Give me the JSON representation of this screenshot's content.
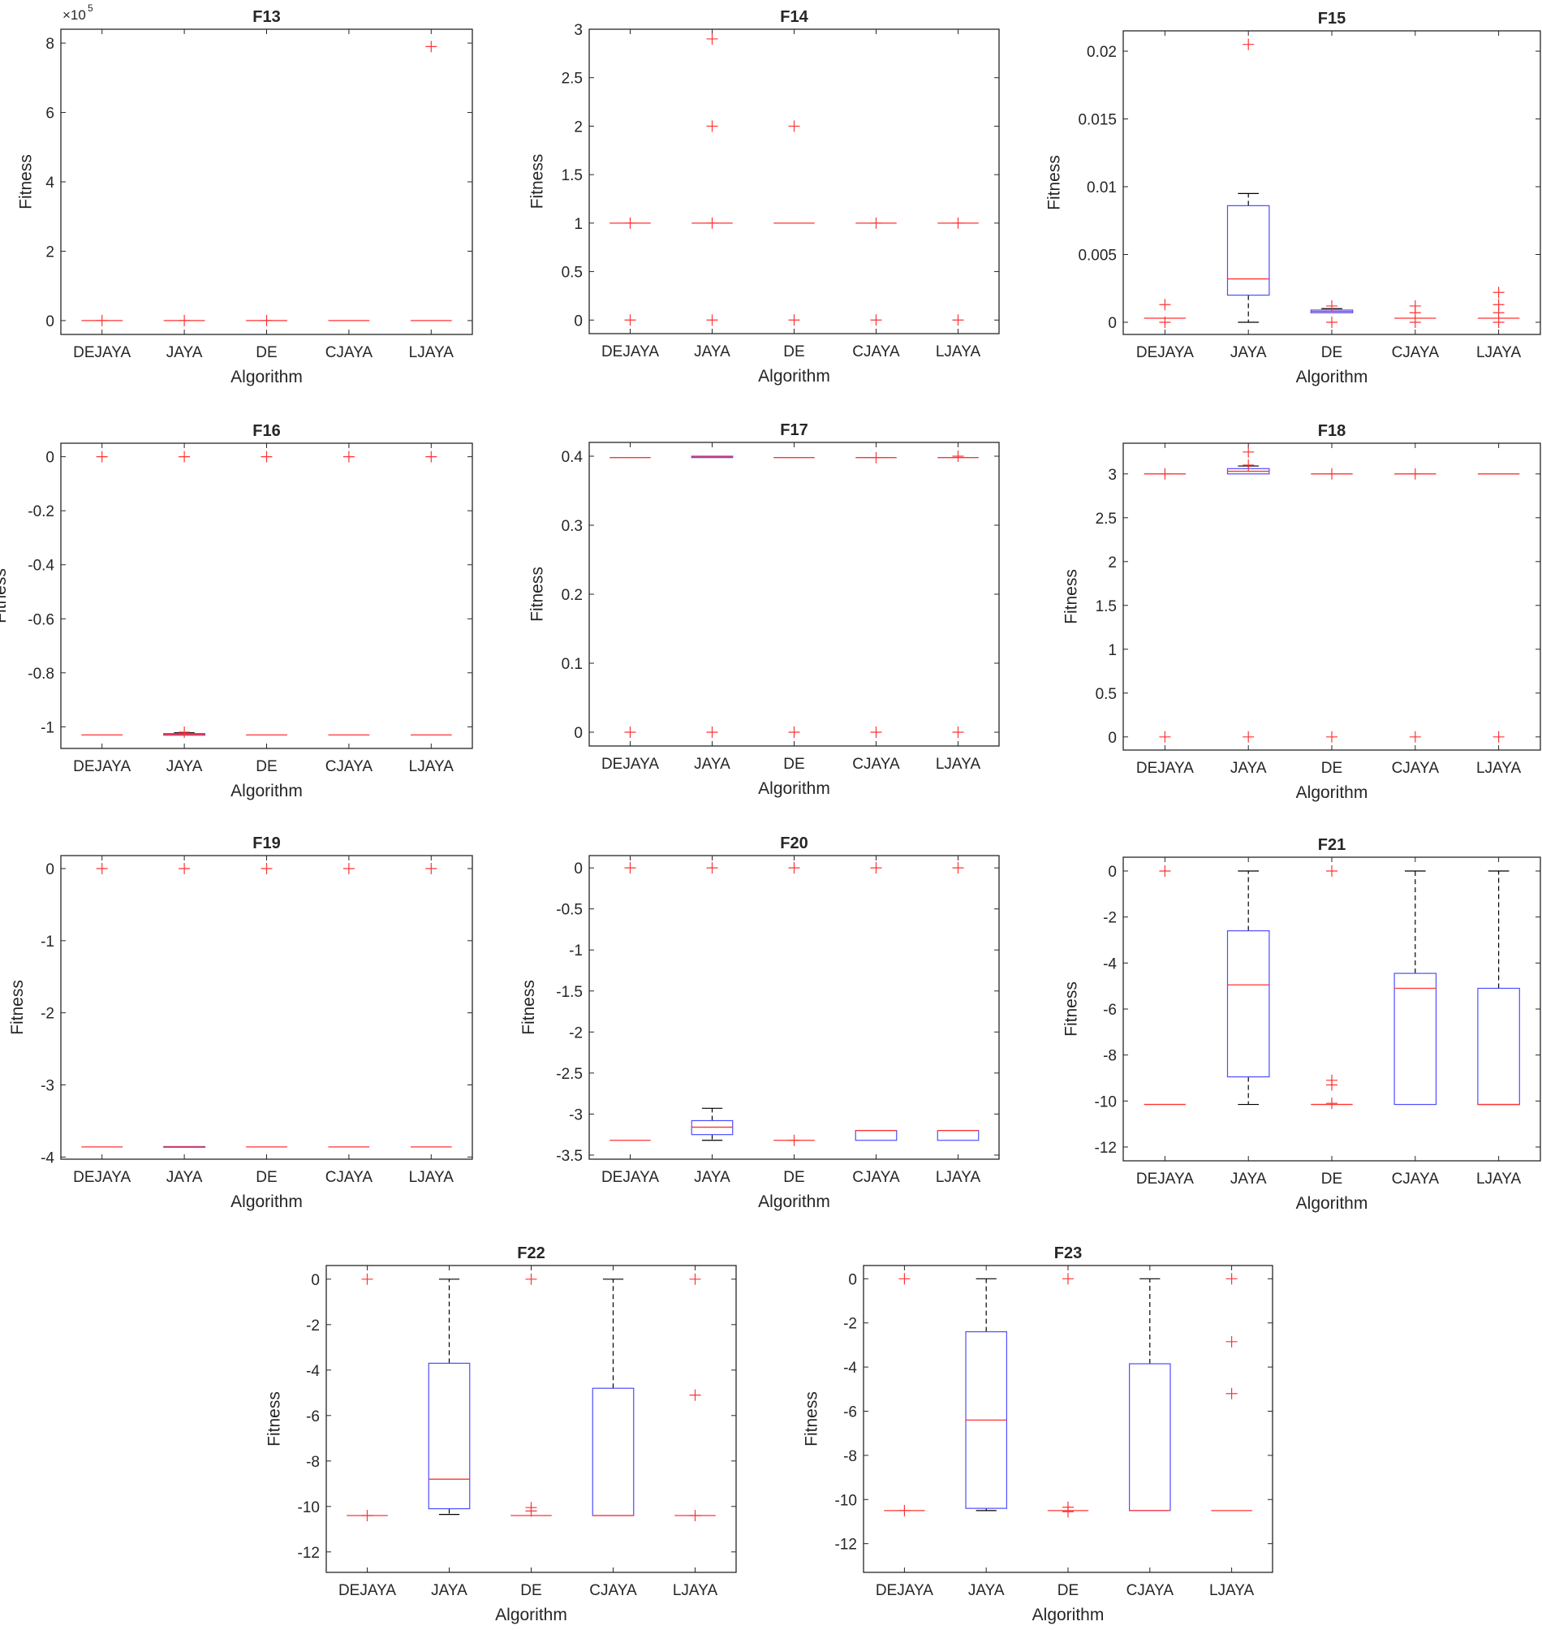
{
  "figure": {
    "ylabel": "Fitness",
    "xlabel": "Algorithm"
  },
  "colors": {
    "box": "#4d4dff",
    "median": "#ff3333",
    "outlier": "#ff3333",
    "whisker": "#000000",
    "axis": "#262626"
  },
  "chart_data": [
    {
      "type": "box",
      "title": "F13",
      "xlabel": "Algorithm",
      "ylabel": "Fitness",
      "ylim": [
        -0.4,
        8.4
      ],
      "yticks": [
        0,
        2,
        4,
        6,
        8
      ],
      "ytick_labels": [
        "0",
        "2",
        "4",
        "6",
        "8"
      ],
      "exponent": "5",
      "categories": [
        "DEJAYA",
        "JAYA",
        "DE",
        "CJAYA",
        "LJAYA"
      ],
      "boxes": [
        {
          "median": 0,
          "q1": 0,
          "q3": 0,
          "whisker_low": 0,
          "whisker_high": 0,
          "outliers": [
            0
          ]
        },
        {
          "median": 0,
          "q1": 0,
          "q3": 0,
          "whisker_low": 0,
          "whisker_high": 0,
          "outliers": [
            0
          ]
        },
        {
          "median": 0,
          "q1": 0,
          "q3": 0,
          "whisker_low": 0,
          "whisker_high": 0,
          "outliers": [
            0
          ]
        },
        {
          "median": 0,
          "q1": 0,
          "q3": 0,
          "whisker_low": 0,
          "whisker_high": 0,
          "outliers": []
        },
        {
          "median": 0,
          "q1": 0,
          "q3": 0,
          "whisker_low": 0,
          "whisker_high": 0,
          "outliers": [
            7.9
          ]
        }
      ]
    },
    {
      "type": "box",
      "title": "F14",
      "xlabel": "Algorithm",
      "ylabel": "Fitness",
      "ylim": [
        -0.14,
        3.0
      ],
      "yticks": [
        0,
        0.5,
        1,
        1.5,
        2,
        2.5,
        3
      ],
      "ytick_labels": [
        "0",
        "0.5",
        "1",
        "1.5",
        "2",
        "2.5",
        "3"
      ],
      "categories": [
        "DEJAYA",
        "JAYA",
        "DE",
        "CJAYA",
        "LJAYA"
      ],
      "boxes": [
        {
          "median": 1,
          "q1": 1,
          "q3": 1,
          "whisker_low": 1,
          "whisker_high": 1,
          "outliers": [
            0,
            1
          ]
        },
        {
          "median": 1,
          "q1": 1,
          "q3": 1,
          "whisker_low": 1,
          "whisker_high": 1,
          "outliers": [
            0,
            1,
            2,
            2.9
          ]
        },
        {
          "median": 1,
          "q1": 1,
          "q3": 1,
          "whisker_low": 1,
          "whisker_high": 1,
          "outliers": [
            0,
            2
          ]
        },
        {
          "median": 1,
          "q1": 1,
          "q3": 1,
          "whisker_low": 1,
          "whisker_high": 1,
          "outliers": [
            0,
            1
          ]
        },
        {
          "median": 1,
          "q1": 1,
          "q3": 1,
          "whisker_low": 1,
          "whisker_high": 1,
          "outliers": [
            0,
            1
          ]
        }
      ]
    },
    {
      "type": "box",
      "title": "F15",
      "xlabel": "Algorithm",
      "ylabel": "Fitness",
      "ylim": [
        -0.0009,
        0.0215
      ],
      "yticks": [
        0,
        0.005,
        0.01,
        0.015,
        0.02
      ],
      "ytick_labels": [
        "0",
        "0.005",
        "0.01",
        "0.015",
        "0.02"
      ],
      "categories": [
        "DEJAYA",
        "JAYA",
        "DE",
        "CJAYA",
        "LJAYA"
      ],
      "boxes": [
        {
          "median": 0.0003,
          "q1": 0.0003,
          "q3": 0.0003,
          "whisker_low": 0.0003,
          "whisker_high": 0.0003,
          "outliers": [
            0,
            0.0013
          ]
        },
        {
          "median": 0.0032,
          "q1": 0.002,
          "q3": 0.0086,
          "whisker_low": 0,
          "whisker_high": 0.0095,
          "outliers": [
            0.0205
          ]
        },
        {
          "median": 0.0008,
          "q1": 0.0007,
          "q3": 0.0009,
          "whisker_low": 0.0007,
          "whisker_high": 0.001,
          "outliers": [
            0,
            0.0012
          ]
        },
        {
          "median": 0.0003,
          "q1": 0.0003,
          "q3": 0.0003,
          "whisker_low": 0.0003,
          "whisker_high": 0.0003,
          "outliers": [
            0,
            0.0007,
            0.0012
          ]
        },
        {
          "median": 0.0003,
          "q1": 0.0003,
          "q3": 0.0003,
          "whisker_low": 0.0003,
          "whisker_high": 0.0003,
          "outliers": [
            0,
            0.0007,
            0.0013,
            0.0022
          ]
        }
      ]
    },
    {
      "type": "box",
      "title": "F16",
      "xlabel": "Algorithm",
      "ylabel": "Fitness",
      "ylim": [
        -1.08,
        0.05
      ],
      "yticks": [
        -1,
        -0.8,
        -0.6,
        -0.4,
        -0.2,
        0
      ],
      "ytick_labels": [
        "-1",
        "-0.8",
        "-0.6",
        "-0.4",
        "-0.2",
        "0"
      ],
      "categories": [
        "DEJAYA",
        "JAYA",
        "DE",
        "CJAYA",
        "LJAYA"
      ],
      "boxes": [
        {
          "median": -1.03,
          "q1": -1.03,
          "q3": -1.03,
          "whisker_low": -1.03,
          "whisker_high": -1.03,
          "outliers": [
            0
          ]
        },
        {
          "median": -1.028,
          "q1": -1.031,
          "q3": -1.025,
          "whisker_low": -1.031,
          "whisker_high": -1.022,
          "outliers": [
            0,
            -1.02
          ]
        },
        {
          "median": -1.03,
          "q1": -1.03,
          "q3": -1.03,
          "whisker_low": -1.03,
          "whisker_high": -1.03,
          "outliers": [
            0
          ]
        },
        {
          "median": -1.03,
          "q1": -1.03,
          "q3": -1.03,
          "whisker_low": -1.03,
          "whisker_high": -1.03,
          "outliers": [
            0
          ]
        },
        {
          "median": -1.03,
          "q1": -1.03,
          "q3": -1.03,
          "whisker_low": -1.03,
          "whisker_high": -1.03,
          "outliers": [
            0
          ]
        }
      ]
    },
    {
      "type": "box",
      "title": "F17",
      "xlabel": "Algorithm",
      "ylabel": "Fitness",
      "ylim": [
        -0.02,
        0.42
      ],
      "yticks": [
        0,
        0.1,
        0.2,
        0.3,
        0.4
      ],
      "ytick_labels": [
        "0",
        "0.1",
        "0.2",
        "0.3",
        "0.4"
      ],
      "categories": [
        "DEJAYA",
        "JAYA",
        "DE",
        "CJAYA",
        "LJAYA"
      ],
      "boxes": [
        {
          "median": 0.398,
          "q1": 0.398,
          "q3": 0.398,
          "whisker_low": 0.398,
          "whisker_high": 0.398,
          "outliers": [
            0
          ]
        },
        {
          "median": 0.399,
          "q1": 0.398,
          "q3": 0.4,
          "whisker_low": 0.398,
          "whisker_high": 0.4,
          "outliers": [
            0
          ]
        },
        {
          "median": 0.398,
          "q1": 0.398,
          "q3": 0.398,
          "whisker_low": 0.398,
          "whisker_high": 0.398,
          "outliers": [
            0
          ]
        },
        {
          "median": 0.398,
          "q1": 0.398,
          "q3": 0.398,
          "whisker_low": 0.398,
          "whisker_high": 0.398,
          "outliers": [
            0,
            0.398
          ]
        },
        {
          "median": 0.398,
          "q1": 0.398,
          "q3": 0.398,
          "whisker_low": 0.398,
          "whisker_high": 0.398,
          "outliers": [
            0,
            0.4
          ]
        }
      ]
    },
    {
      "type": "box",
      "title": "F18",
      "xlabel": "Algorithm",
      "ylabel": "Fitness",
      "ylim": [
        -0.15,
        3.35
      ],
      "yticks": [
        0,
        0.5,
        1,
        1.5,
        2,
        2.5,
        3
      ],
      "ytick_labels": [
        "0",
        "0.5",
        "1",
        "1.5",
        "2",
        "2.5",
        "3"
      ],
      "categories": [
        "DEJAYA",
        "JAYA",
        "DE",
        "CJAYA",
        "LJAYA"
      ],
      "boxes": [
        {
          "median": 3,
          "q1": 3,
          "q3": 3,
          "whisker_low": 3,
          "whisker_high": 3,
          "outliers": [
            0,
            3
          ]
        },
        {
          "median": 3.03,
          "q1": 3.0,
          "q3": 3.06,
          "whisker_low": 3.0,
          "whisker_high": 3.09,
          "outliers": [
            0,
            3.1,
            3.25
          ]
        },
        {
          "median": 3,
          "q1": 3,
          "q3": 3,
          "whisker_low": 3,
          "whisker_high": 3,
          "outliers": [
            0,
            3
          ]
        },
        {
          "median": 3,
          "q1": 3,
          "q3": 3,
          "whisker_low": 3,
          "whisker_high": 3,
          "outliers": [
            0,
            3
          ]
        },
        {
          "median": 3,
          "q1": 3,
          "q3": 3,
          "whisker_low": 3,
          "whisker_high": 3,
          "outliers": [
            0
          ]
        }
      ]
    },
    {
      "type": "box",
      "title": "F19",
      "xlabel": "Algorithm",
      "ylabel": "Fitness",
      "ylim": [
        -4.03,
        0.18
      ],
      "yticks": [
        -4,
        -3,
        -2,
        -1,
        0
      ],
      "ytick_labels": [
        "-4",
        "-3",
        "-2",
        "-1",
        "0"
      ],
      "categories": [
        "DEJAYA",
        "JAYA",
        "DE",
        "CJAYA",
        "LJAYA"
      ],
      "boxes": [
        {
          "median": -3.86,
          "q1": -3.86,
          "q3": -3.86,
          "whisker_low": -3.86,
          "whisker_high": -3.86,
          "outliers": [
            0
          ]
        },
        {
          "median": -3.86,
          "q1": -3.865,
          "q3": -3.855,
          "whisker_low": -3.865,
          "whisker_high": -3.855,
          "outliers": [
            0
          ]
        },
        {
          "median": -3.86,
          "q1": -3.86,
          "q3": -3.86,
          "whisker_low": -3.86,
          "whisker_high": -3.86,
          "outliers": [
            0
          ]
        },
        {
          "median": -3.86,
          "q1": -3.86,
          "q3": -3.86,
          "whisker_low": -3.86,
          "whisker_high": -3.86,
          "outliers": [
            0
          ]
        },
        {
          "median": -3.86,
          "q1": -3.86,
          "q3": -3.86,
          "whisker_low": -3.86,
          "whisker_high": -3.86,
          "outliers": [
            0
          ]
        }
      ]
    },
    {
      "type": "box",
      "title": "F20",
      "xlabel": "Algorithm",
      "ylabel": "Fitness",
      "ylim": [
        -3.55,
        0.15
      ],
      "yticks": [
        -3.5,
        -3,
        -2.5,
        -2,
        -1.5,
        -1,
        -0.5,
        0
      ],
      "ytick_labels": [
        "-3.5",
        "-3",
        "-2.5",
        "-2",
        "-1.5",
        "-1",
        "-0.5",
        "0"
      ],
      "categories": [
        "DEJAYA",
        "JAYA",
        "DE",
        "CJAYA",
        "LJAYA"
      ],
      "boxes": [
        {
          "median": -3.32,
          "q1": -3.32,
          "q3": -3.32,
          "whisker_low": -3.32,
          "whisker_high": -3.32,
          "outliers": [
            0
          ]
        },
        {
          "median": -3.16,
          "q1": -3.25,
          "q3": -3.08,
          "whisker_low": -3.32,
          "whisker_high": -2.93,
          "outliers": [
            0
          ]
        },
        {
          "median": -3.32,
          "q1": -3.32,
          "q3": -3.32,
          "whisker_low": -3.32,
          "whisker_high": -3.32,
          "outliers": [
            0,
            -3.32
          ]
        },
        {
          "median": -3.2,
          "q1": -3.32,
          "q3": -3.2,
          "whisker_low": -3.32,
          "whisker_high": -3.2,
          "outliers": [
            0
          ]
        },
        {
          "median": -3.2,
          "q1": -3.32,
          "q3": -3.2,
          "whisker_low": -3.32,
          "whisker_high": -3.2,
          "outliers": [
            0
          ]
        }
      ]
    },
    {
      "type": "box",
      "title": "F21",
      "xlabel": "Algorithm",
      "ylabel": "Fitness",
      "ylim": [
        -12.6,
        0.6
      ],
      "yticks": [
        -12,
        -10,
        -8,
        -6,
        -4,
        -2,
        0
      ],
      "ytick_labels": [
        "-12",
        "-10",
        "-8",
        "-6",
        "-4",
        "-2",
        "0"
      ],
      "categories": [
        "DEJAYA",
        "JAYA",
        "DE",
        "CJAYA",
        "LJAYA"
      ],
      "boxes": [
        {
          "median": -10.15,
          "q1": -10.15,
          "q3": -10.15,
          "whisker_low": -10.15,
          "whisker_high": -10.15,
          "outliers": [
            0
          ]
        },
        {
          "median": -4.95,
          "q1": -8.95,
          "q3": -2.6,
          "whisker_low": -10.15,
          "whisker_high": 0,
          "outliers": []
        },
        {
          "median": -10.15,
          "q1": -10.15,
          "q3": -10.15,
          "whisker_low": -10.15,
          "whisker_high": -10.15,
          "outliers": [
            0,
            -9.1,
            -9.3,
            -10.1
          ]
        },
        {
          "median": -5.1,
          "q1": -10.15,
          "q3": -4.45,
          "whisker_low": -10.15,
          "whisker_high": 0,
          "outliers": []
        },
        {
          "median": -10.15,
          "q1": -10.15,
          "q3": -5.1,
          "whisker_low": -10.15,
          "whisker_high": 0,
          "outliers": []
        }
      ]
    },
    {
      "type": "box",
      "title": "F22",
      "xlabel": "Algorithm",
      "ylabel": "Fitness",
      "ylim": [
        -12.9,
        0.6
      ],
      "yticks": [
        -12,
        -10,
        -8,
        -6,
        -4,
        -2,
        0
      ],
      "ytick_labels": [
        "-12",
        "-10",
        "-8",
        "-6",
        "-4",
        "-2",
        "0"
      ],
      "categories": [
        "DEJAYA",
        "JAYA",
        "DE",
        "CJAYA",
        "LJAYA"
      ],
      "boxes": [
        {
          "median": -10.4,
          "q1": -10.4,
          "q3": -10.4,
          "whisker_low": -10.4,
          "whisker_high": -10.4,
          "outliers": [
            0,
            -10.4
          ]
        },
        {
          "median": -8.8,
          "q1": -10.1,
          "q3": -3.7,
          "whisker_low": -10.35,
          "whisker_high": 0,
          "outliers": []
        },
        {
          "median": -10.4,
          "q1": -10.4,
          "q3": -10.4,
          "whisker_low": -10.4,
          "whisker_high": -10.4,
          "outliers": [
            0,
            -10.05,
            -10.2
          ]
        },
        {
          "median": -10.4,
          "q1": -10.4,
          "q3": -4.8,
          "whisker_low": -10.4,
          "whisker_high": 0,
          "outliers": []
        },
        {
          "median": -10.4,
          "q1": -10.4,
          "q3": -10.4,
          "whisker_low": -10.4,
          "whisker_high": -10.4,
          "outliers": [
            0,
            -5.1,
            -10.4
          ]
        }
      ]
    },
    {
      "type": "box",
      "title": "F23",
      "xlabel": "Algorithm",
      "ylabel": "Fitness",
      "ylim": [
        -13.3,
        0.6
      ],
      "yticks": [
        -12,
        -10,
        -8,
        -6,
        -4,
        -2,
        0
      ],
      "ytick_labels": [
        "-12",
        "-10",
        "-8",
        "-6",
        "-4",
        "-2",
        "0"
      ],
      "categories": [
        "DEJAYA",
        "JAYA",
        "DE",
        "CJAYA",
        "LJAYA"
      ],
      "boxes": [
        {
          "median": -10.5,
          "q1": -10.5,
          "q3": -10.5,
          "whisker_low": -10.5,
          "whisker_high": -10.5,
          "outliers": [
            0,
            -10.5
          ]
        },
        {
          "median": -6.4,
          "q1": -10.4,
          "q3": -2.4,
          "whisker_low": -10.5,
          "whisker_high": 0,
          "outliers": []
        },
        {
          "median": -10.5,
          "q1": -10.5,
          "q3": -10.5,
          "whisker_low": -10.5,
          "whisker_high": -10.5,
          "outliers": [
            0,
            -10.35,
            -10.55
          ]
        },
        {
          "median": -10.5,
          "q1": -10.5,
          "q3": -3.85,
          "whisker_low": -10.5,
          "whisker_high": 0,
          "outliers": []
        },
        {
          "median": -10.5,
          "q1": -10.5,
          "q3": -10.5,
          "whisker_low": -10.5,
          "whisker_high": -10.5,
          "outliers": [
            0,
            -2.85,
            -5.2
          ]
        }
      ]
    }
  ]
}
